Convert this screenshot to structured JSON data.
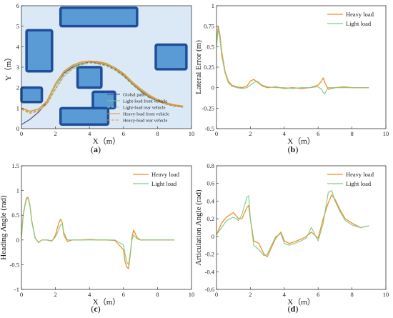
{
  "colors": {
    "heavy": "#F28C28",
    "light": "#7FCB84",
    "global_path": "#4a3f8c",
    "map_bg": "#dbe9f6",
    "obstacle_fill": "#5b9bd5",
    "obstacle_edge": "#1f4e9a"
  },
  "chart_data": [
    {
      "id": "a",
      "type": "line",
      "caption": "(a)",
      "xlabel": "X（m）",
      "ylabel": "Y（m）",
      "xlim": [
        0,
        10
      ],
      "ylim": [
        0,
        6
      ],
      "xticks": [
        "0",
        "2",
        "4",
        "6",
        "8",
        "10"
      ],
      "yticks": [
        "0",
        "1",
        "2",
        "3",
        "4",
        "5",
        "6"
      ],
      "grid": false,
      "legend_position": "bottom-right",
      "obstacles": [
        {
          "x": [
            2.3,
            6.8
          ],
          "y": [
            5.0,
            5.9
          ]
        },
        {
          "x": [
            0.3,
            1.8
          ],
          "y": [
            2.8,
            4.8
          ]
        },
        {
          "x": [
            7.9,
            9.7
          ],
          "y": [
            2.9,
            4.1
          ]
        },
        {
          "x": [
            3.3,
            4.7
          ],
          "y": [
            2.0,
            3.0
          ]
        },
        {
          "x": [
            0.0,
            1.2
          ],
          "y": [
            1.3,
            2.0
          ]
        },
        {
          "x": [
            4.2,
            5.5
          ],
          "y": [
            1.0,
            1.8
          ]
        },
        {
          "x": [
            2.3,
            5.1
          ],
          "y": [
            0.2,
            1.0
          ]
        }
      ],
      "series": [
        {
          "name": "Global path",
          "style": "solid",
          "color": "global_path",
          "x": [
            0,
            0.5,
            1.0,
            1.5,
            2.0,
            2.5,
            3.0,
            3.5,
            4.0,
            4.5,
            5.0,
            5.5,
            6.0,
            6.5,
            7.0,
            7.5,
            8.0,
            8.5,
            9.0,
            9.5
          ],
          "y": [
            0.2,
            0.45,
            0.8,
            1.3,
            2.1,
            2.7,
            3.0,
            3.15,
            3.25,
            3.2,
            3.1,
            2.9,
            2.6,
            2.2,
            1.85,
            1.55,
            1.35,
            1.2,
            1.1,
            1.05
          ]
        },
        {
          "name": "Light-load front vehicle",
          "style": "solid",
          "color": "light",
          "x": [
            0,
            0.5,
            1.0,
            1.5,
            2.0,
            2.5,
            3.0,
            3.5,
            4.0,
            4.5,
            5.0,
            5.5,
            6.0,
            6.5,
            7.0,
            7.5,
            8.0,
            8.5,
            9.0,
            9.5
          ],
          "y": [
            1.0,
            0.85,
            0.95,
            1.3,
            2.1,
            2.75,
            3.05,
            3.2,
            3.3,
            3.25,
            3.15,
            2.95,
            2.65,
            2.25,
            1.9,
            1.6,
            1.4,
            1.25,
            1.15,
            1.08
          ]
        },
        {
          "name": "Light-load rear vehicle",
          "style": "dash",
          "color": "light",
          "x": [
            0,
            0.5,
            1.0,
            1.5,
            2.0,
            2.5,
            3.0,
            3.5,
            4.0,
            4.5,
            5.0,
            5.5,
            6.0,
            6.5,
            7.0,
            7.5,
            8.0,
            8.5,
            9.0,
            9.5
          ],
          "y": [
            0.95,
            0.8,
            0.9,
            1.2,
            1.9,
            2.55,
            2.9,
            3.1,
            3.2,
            3.15,
            3.05,
            2.85,
            2.55,
            2.15,
            1.8,
            1.5,
            1.35,
            1.2,
            1.1,
            1.05
          ]
        },
        {
          "name": "Heavy-load front vehicle",
          "style": "solid",
          "color": "heavy",
          "x": [
            0,
            0.5,
            1.0,
            1.5,
            2.0,
            2.5,
            3.0,
            3.5,
            4.0,
            4.5,
            5.0,
            5.5,
            6.0,
            6.5,
            7.0,
            7.5,
            8.0,
            8.5,
            9.0,
            9.5
          ],
          "y": [
            1.0,
            0.85,
            0.95,
            1.35,
            2.2,
            2.8,
            3.1,
            3.25,
            3.3,
            3.28,
            3.18,
            2.98,
            2.7,
            2.3,
            1.95,
            1.65,
            1.42,
            1.27,
            1.16,
            1.1
          ]
        },
        {
          "name": "Heavy-load rear vehicle",
          "style": "dash",
          "color": "heavy",
          "x": [
            0,
            0.5,
            1.0,
            1.5,
            2.0,
            2.5,
            3.0,
            3.5,
            4.0,
            4.5,
            5.0,
            5.5,
            6.0,
            6.5,
            7.0,
            7.5,
            8.0,
            8.5,
            9.0,
            9.5
          ],
          "y": [
            0.95,
            0.75,
            0.85,
            1.2,
            1.95,
            2.6,
            2.95,
            3.15,
            3.25,
            3.22,
            3.1,
            2.9,
            2.62,
            2.22,
            1.88,
            1.58,
            1.38,
            1.22,
            1.12,
            1.06
          ]
        }
      ]
    },
    {
      "id": "b",
      "type": "line",
      "caption": "(b)",
      "xlabel": "X（m）",
      "ylabel": "Lateral Error (m)",
      "xlim": [
        0,
        10
      ],
      "ylim": [
        -0.5,
        1.0
      ],
      "xticks": [
        "0",
        "2",
        "4",
        "6",
        "8",
        "10"
      ],
      "yticks": [
        "-0.5",
        "-0.25",
        "0",
        "0.25",
        "0.5",
        "0.75",
        "1"
      ],
      "grid": false,
      "legend_position": "top-right",
      "series": [
        {
          "name": "Heavy load",
          "color": "heavy",
          "x": [
            0,
            0.1,
            0.2,
            0.3,
            0.5,
            0.7,
            0.9,
            1.2,
            1.5,
            1.8,
            2.0,
            2.2,
            2.4,
            2.7,
            3.0,
            3.5,
            4.0,
            4.5,
            5.0,
            5.5,
            6.0,
            6.2,
            6.3,
            6.4,
            6.5,
            6.6,
            7.0,
            7.5,
            8.0,
            8.5,
            9.0
          ],
          "y": [
            0.55,
            0.75,
            0.65,
            0.45,
            0.2,
            0.08,
            0.03,
            0.01,
            0.0,
            0.02,
            0.08,
            0.1,
            0.07,
            0.02,
            0.0,
            0.01,
            -0.01,
            0.0,
            -0.01,
            0.0,
            0.03,
            0.08,
            0.12,
            0.06,
            0.02,
            -0.02,
            0.0,
            0.01,
            0.0,
            0.0,
            0.0
          ]
        },
        {
          "name": "Light load",
          "color": "light",
          "x": [
            0,
            0.1,
            0.2,
            0.3,
            0.5,
            0.7,
            0.9,
            1.2,
            1.5,
            1.8,
            2.0,
            2.2,
            2.4,
            2.7,
            3.0,
            3.5,
            4.0,
            4.5,
            5.0,
            5.5,
            6.0,
            6.2,
            6.3,
            6.4,
            6.5,
            6.6,
            7.0,
            7.5,
            8.0,
            8.5,
            9.0
          ],
          "y": [
            0.5,
            0.72,
            0.6,
            0.4,
            0.18,
            0.06,
            0.02,
            0.0,
            -0.01,
            0.0,
            0.03,
            0.06,
            0.08,
            0.03,
            0.01,
            0.0,
            0.0,
            -0.01,
            0.0,
            0.0,
            0.01,
            -0.02,
            -0.06,
            -0.07,
            -0.03,
            0.0,
            0.0,
            0.0,
            0.0,
            0.0,
            0.0
          ]
        }
      ]
    },
    {
      "id": "c",
      "type": "line",
      "caption": "(c)",
      "xlabel": "X（m）",
      "ylabel": "Heading Angle (rad)",
      "xlim": [
        0,
        10
      ],
      "ylim": [
        -1,
        1.5
      ],
      "xticks": [
        "0",
        "2",
        "4",
        "6",
        "8",
        "10"
      ],
      "yticks": [
        "-1",
        "-0.5",
        "0",
        "0.5",
        "1",
        "1.5"
      ],
      "grid": false,
      "legend_position": "top-right",
      "series": [
        {
          "name": "Heavy load",
          "color": "heavy",
          "x": [
            0,
            0.1,
            0.2,
            0.3,
            0.4,
            0.5,
            0.6,
            0.8,
            1.0,
            1.2,
            1.5,
            1.8,
            2.0,
            2.2,
            2.3,
            2.4,
            2.5,
            2.7,
            3.0,
            3.5,
            4.0,
            4.5,
            5.0,
            5.5,
            6.0,
            6.1,
            6.2,
            6.3,
            6.4,
            6.5,
            6.6,
            6.8,
            7.0,
            7.5,
            8.0,
            8.5,
            9.0
          ],
          "y": [
            0.05,
            0.5,
            0.7,
            0.85,
            0.86,
            0.7,
            0.4,
            0.05,
            -0.05,
            0.0,
            0.0,
            -0.02,
            0.1,
            0.35,
            0.42,
            0.35,
            0.1,
            -0.03,
            0.0,
            0.0,
            0.01,
            0.0,
            0.0,
            -0.01,
            -0.2,
            -0.45,
            -0.55,
            -0.58,
            -0.3,
            0.05,
            0.2,
            0.05,
            0.0,
            0.0,
            0.0,
            0.0,
            0.0
          ]
        },
        {
          "name": "Light load",
          "color": "light",
          "x": [
            0,
            0.1,
            0.2,
            0.3,
            0.4,
            0.5,
            0.6,
            0.8,
            1.0,
            1.2,
            1.5,
            1.8,
            2.0,
            2.2,
            2.3,
            2.4,
            2.5,
            2.7,
            3.0,
            3.5,
            4.0,
            4.5,
            5.0,
            5.5,
            6.0,
            6.1,
            6.2,
            6.3,
            6.4,
            6.5,
            6.6,
            6.8,
            7.0,
            7.5,
            8.0,
            8.5,
            9.0
          ],
          "y": [
            0.05,
            0.48,
            0.68,
            0.82,
            0.84,
            0.68,
            0.38,
            0.04,
            -0.04,
            0.0,
            0.0,
            -0.01,
            0.06,
            0.22,
            0.3,
            0.32,
            0.15,
            0.0,
            0.0,
            0.0,
            0.0,
            0.0,
            0.0,
            0.0,
            -0.1,
            -0.3,
            -0.45,
            -0.5,
            -0.25,
            0.0,
            0.1,
            0.02,
            0.0,
            0.0,
            0.0,
            0.0,
            0.0
          ]
        }
      ]
    },
    {
      "id": "d",
      "type": "line",
      "caption": "(d)",
      "xlabel": "X（m）",
      "ylabel": "Articulation Angle (rad)",
      "xlim": [
        0,
        10
      ],
      "ylim": [
        -0.6,
        0.8
      ],
      "xticks": [
        "0",
        "2",
        "4",
        "6",
        "8",
        "10"
      ],
      "yticks": [
        "-0.6",
        "-0.4",
        "-0.2",
        "0",
        "0.2",
        "0.4",
        "0.6",
        "0.8"
      ],
      "grid": false,
      "legend_position": "top-right",
      "series": [
        {
          "name": "Heavy load",
          "color": "heavy",
          "x": [
            0,
            0.3,
            0.6,
            1.0,
            1.3,
            1.5,
            1.8,
            1.9,
            2.0,
            2.2,
            2.5,
            2.8,
            3.0,
            3.3,
            3.5,
            3.8,
            4.0,
            4.3,
            4.6,
            5.0,
            5.3,
            5.6,
            6.0,
            6.3,
            6.6,
            6.8,
            7.0,
            7.3,
            7.6,
            8.0,
            8.5,
            9.0
          ],
          "y": [
            0.02,
            0.15,
            0.22,
            0.27,
            0.2,
            0.2,
            0.33,
            0.35,
            0.2,
            -0.05,
            -0.08,
            -0.2,
            -0.23,
            -0.1,
            -0.02,
            0.05,
            -0.05,
            -0.08,
            -0.06,
            -0.03,
            0.0,
            0.05,
            -0.02,
            0.2,
            0.38,
            0.47,
            0.42,
            0.3,
            0.2,
            0.15,
            0.1,
            0.12
          ]
        },
        {
          "name": "Light load",
          "color": "light",
          "x": [
            0,
            0.3,
            0.6,
            1.0,
            1.3,
            1.5,
            1.8,
            1.9,
            2.0,
            2.2,
            2.5,
            2.8,
            3.0,
            3.3,
            3.5,
            3.8,
            4.0,
            4.3,
            4.6,
            5.0,
            5.3,
            5.6,
            6.0,
            6.3,
            6.6,
            6.8,
            7.0,
            7.3,
            7.6,
            8.0,
            8.5,
            9.0
          ],
          "y": [
            0.02,
            0.1,
            0.18,
            0.22,
            0.18,
            0.25,
            0.45,
            0.46,
            0.2,
            -0.1,
            -0.15,
            -0.22,
            -0.2,
            -0.08,
            0.0,
            0.03,
            -0.08,
            -0.1,
            -0.08,
            -0.05,
            -0.02,
            0.1,
            -0.05,
            0.15,
            0.5,
            0.52,
            0.4,
            0.28,
            0.18,
            0.13,
            0.1,
            0.12
          ]
        }
      ]
    }
  ]
}
